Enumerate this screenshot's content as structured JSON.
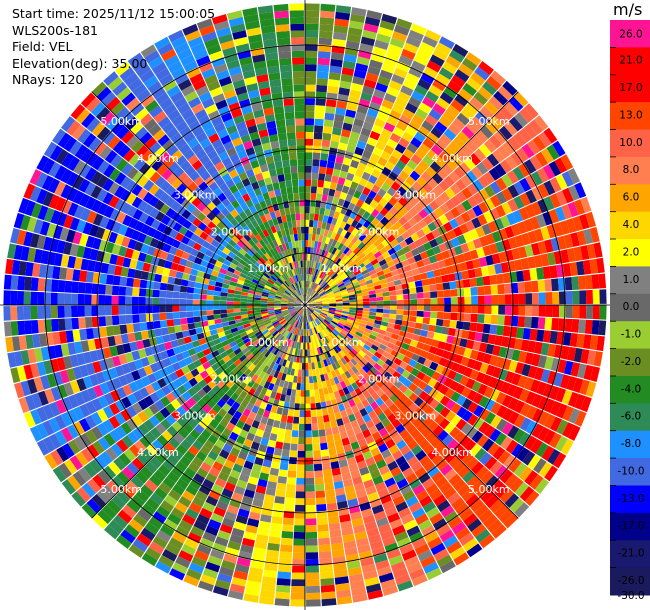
{
  "header": {
    "start_time": "Start time: 2025/11/12 15:00:05",
    "station": "WLS200s-181",
    "field": "Field: VEL",
    "elevation": "Elevation(deg): 35.00",
    "nrays": "NRays: 120"
  },
  "chart_data": {
    "type": "heatmap",
    "projection": "polar-ppi",
    "field": "VEL",
    "elevation_deg": 35.0,
    "nrays": 120,
    "range_rings_km": [
      1,
      2,
      3,
      4,
      5
    ],
    "ring_labels": [
      "1.00km",
      "2.00km",
      "3.00km",
      "4.00km",
      "5.00km"
    ],
    "max_range_km": 5.8,
    "colorbar": {
      "unit": "m/s",
      "ticks": [
        "26.0",
        "21.0",
        "17.0",
        "13.0",
        "10.0",
        "8.0",
        "6.0",
        "4.0",
        "2.0",
        "1.0",
        "0.0",
        "-1.0",
        "-2.0",
        "-4.0",
        "-6.0",
        "-8.0",
        "-10.0",
        "-13.0",
        "-17.0",
        "-21.0",
        "-26.0",
        "-30.0"
      ],
      "colors": [
        "#ff1493",
        "#ff0000",
        "#ff0000",
        "#ff4500",
        "#ff6347",
        "#ff7f50",
        "#ffa500",
        "#ffd700",
        "#ffff00",
        "#808080",
        "#696969",
        "#9acd32",
        "#6b8e23",
        "#228b22",
        "#2e8b57",
        "#1e90ff",
        "#4169e1",
        "#0000ff",
        "#00008b",
        "#191970",
        "#1a1a5e"
      ]
    }
  }
}
